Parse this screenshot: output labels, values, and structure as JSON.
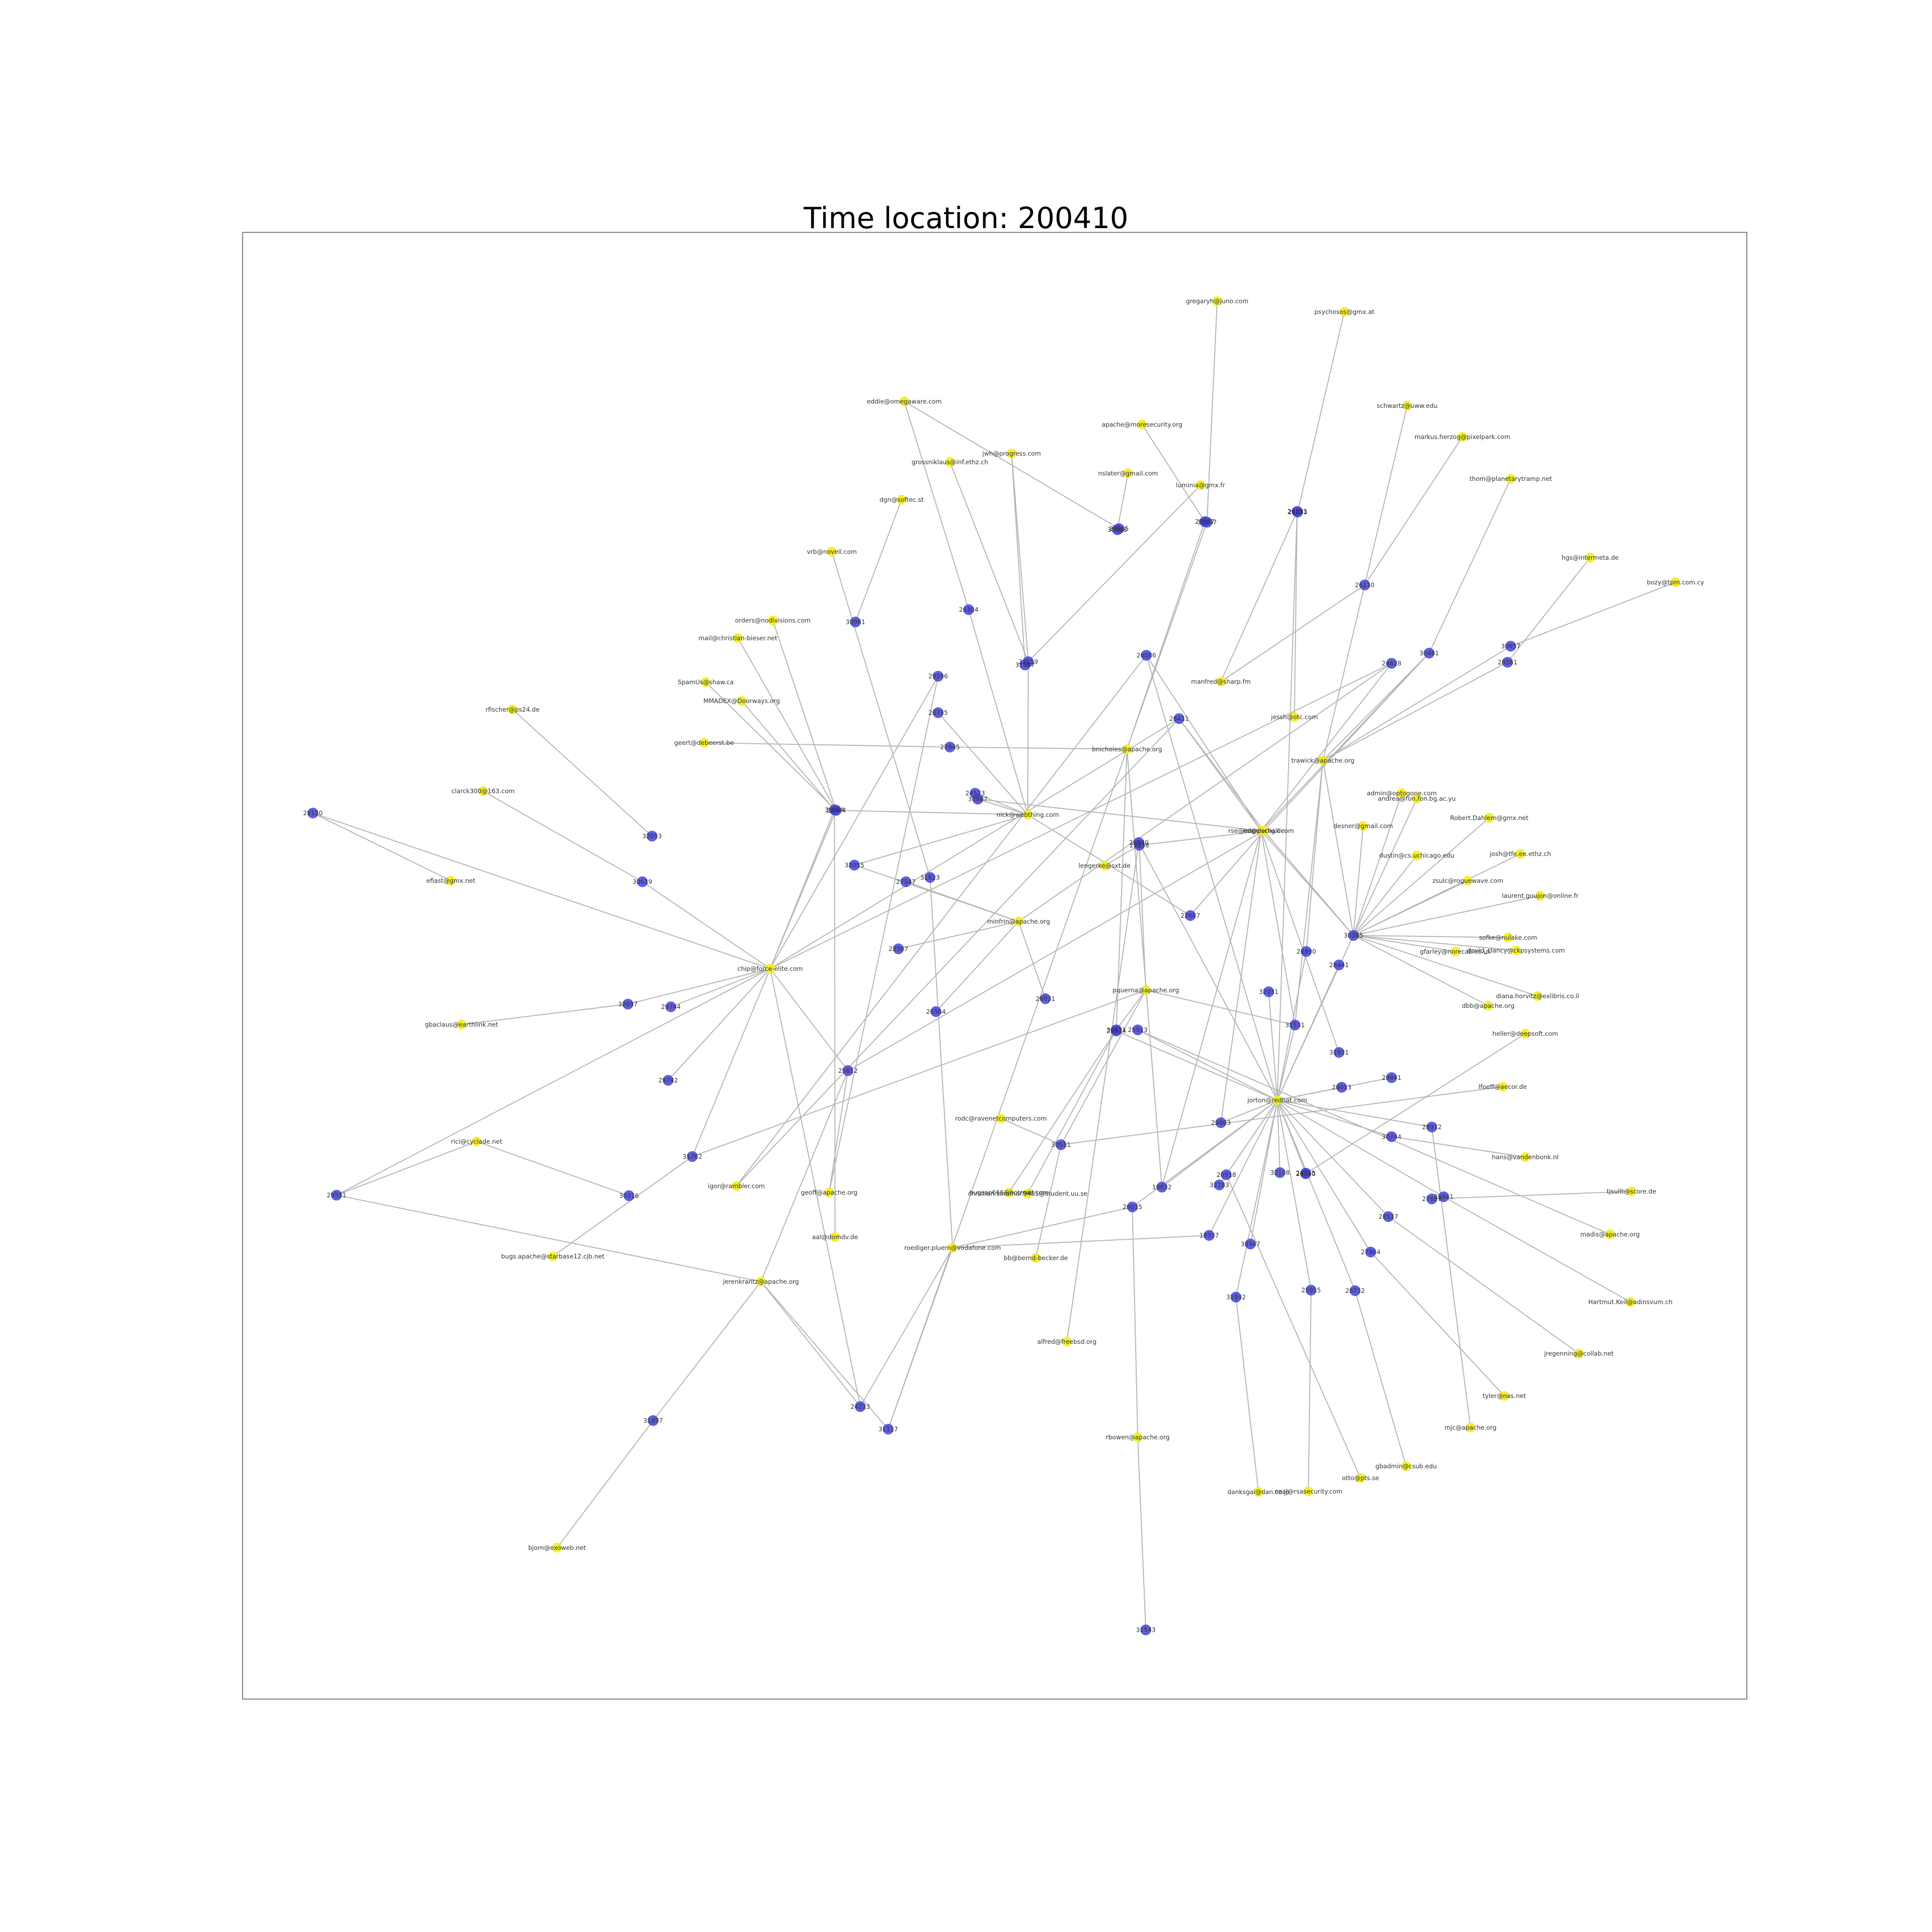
{
  "title": "Time location: 200410",
  "colors": {
    "person_node": "#f2ee1f",
    "issue_node": "#4343dd",
    "edge": "#b4b4b4",
    "frame": "#888888"
  },
  "nodes": [
    {
      "id": "h1",
      "label": "jorton@redhat.com",
      "kind": "person"
    },
    {
      "id": "h2",
      "label": "pquerna@apache.org",
      "kind": "person"
    },
    {
      "id": "h3",
      "label": "chip@force-elite.com",
      "kind": "person"
    },
    {
      "id": "h4",
      "label": "nick@webthing.com",
      "kind": "person"
    },
    {
      "id": "h5",
      "label": "minfrin@apache.org",
      "kind": "person"
    },
    {
      "id": "h6",
      "label": "trawick@apache.org",
      "kind": "person"
    },
    {
      "id": "h7",
      "label": "bnicholes@apache.org",
      "kind": "person"
    },
    {
      "id": "h8",
      "label": "rse@engelschall.com",
      "kind": "person"
    },
    {
      "id": "h9",
      "label": "jerenkrantz@apache.org",
      "kind": "person"
    },
    {
      "id": "h10",
      "label": "roediger.pluem@vodafone.com",
      "kind": "person"
    },
    {
      "id": "h11",
      "label": "nd@perlig.de",
      "kind": "person"
    },
    {
      "id": "h12",
      "label": "geoff@apache.org",
      "kind": "person"
    },
    {
      "id": "h13",
      "label": "igor@rambler.com",
      "kind": "person"
    },
    {
      "id": "h14",
      "label": "aal@domdv.de",
      "kind": "person"
    },
    {
      "id": "h15",
      "label": "gregaryh@juno.com",
      "kind": "person"
    },
    {
      "id": "h16",
      "label": "psychosos@gmx.at",
      "kind": "person"
    },
    {
      "id": "h17",
      "label": "eddie@omegaware.com",
      "kind": "person"
    },
    {
      "id": "h18",
      "label": "apache@moresecurity.org",
      "kind": "person"
    },
    {
      "id": "h19",
      "label": "jwh@progress.com",
      "kind": "person"
    },
    {
      "id": "h20",
      "label": "grossniklaus@inf.ethz.ch",
      "kind": "person"
    },
    {
      "id": "h21",
      "label": "nslater@gmail.com",
      "kind": "person"
    },
    {
      "id": "h22",
      "label": "luminia@gmx.fr",
      "kind": "person"
    },
    {
      "id": "h23",
      "label": "dgn@softec.st",
      "kind": "person"
    },
    {
      "id": "h24",
      "label": "vrb@novell.com",
      "kind": "person"
    },
    {
      "id": "h25",
      "label": "orders@nodivisions.com",
      "kind": "person"
    },
    {
      "id": "h26",
      "label": "mail@christian-bieser.net",
      "kind": "person"
    },
    {
      "id": "h27",
      "label": "SpamUs@shaw.ca",
      "kind": "person"
    },
    {
      "id": "h28",
      "label": "MMADEX@Doorways.org",
      "kind": "person"
    },
    {
      "id": "h29",
      "label": "geert@debeerst.be",
      "kind": "person"
    },
    {
      "id": "h30",
      "label": "rfischer@ps24.de",
      "kind": "person"
    },
    {
      "id": "h31",
      "label": "clarck300@163.com",
      "kind": "person"
    },
    {
      "id": "h32",
      "label": "efiast@gmx.net",
      "kind": "person"
    },
    {
      "id": "h33",
      "label": "gbaclaus@earthlink.net",
      "kind": "person"
    },
    {
      "id": "h34",
      "label": "rici@cyclade.net",
      "kind": "person"
    },
    {
      "id": "h35",
      "label": "bugs.apache@starbase12.cjb.net",
      "kind": "person"
    },
    {
      "id": "h36",
      "label": "bjorn@exoweb.net",
      "kind": "person"
    },
    {
      "id": "h37",
      "label": "rodc@ravenetcomputers.com",
      "kind": "person"
    },
    {
      "id": "h38",
      "label": "bugsan666@hotmail.com",
      "kind": "person"
    },
    {
      "id": "h39",
      "label": "christian.sommar.9485@student.uu.se",
      "kind": "person"
    },
    {
      "id": "h40",
      "label": "bb@bernd-becker.de",
      "kind": "person"
    },
    {
      "id": "h41",
      "label": "alfred@freebsd.org",
      "kind": "person"
    },
    {
      "id": "h42",
      "label": "lengerke@sxt.de",
      "kind": "person"
    },
    {
      "id": "h43",
      "label": "rbowen@apache.org",
      "kind": "person"
    },
    {
      "id": "h44",
      "label": "danksgai@dan.co.jp",
      "kind": "person"
    },
    {
      "id": "h45",
      "label": "neal@rsasecurity.com",
      "kind": "person"
    },
    {
      "id": "h46",
      "label": "otto@pts.se",
      "kind": "person"
    },
    {
      "id": "h47",
      "label": "gbadmin@csub.edu",
      "kind": "person"
    },
    {
      "id": "h48",
      "label": "mjc@apache.org",
      "kind": "person"
    },
    {
      "id": "h49",
      "label": "tyler@nas.net",
      "kind": "person"
    },
    {
      "id": "h50",
      "label": "jregenning@collab.net",
      "kind": "person"
    },
    {
      "id": "h51",
      "label": "Hartmut.Keil@adinsvum.ch",
      "kind": "person"
    },
    {
      "id": "h52",
      "label": "madis@apache.org",
      "kind": "person"
    },
    {
      "id": "h53",
      "label": "tjsullt@score.de",
      "kind": "person"
    },
    {
      "id": "h54",
      "label": "hans@vandenbonk.nl",
      "kind": "person"
    },
    {
      "id": "h55",
      "label": "lfoeff@aecor.de",
      "kind": "person"
    },
    {
      "id": "h56",
      "label": "heller@deepsoft.com",
      "kind": "person"
    },
    {
      "id": "h57",
      "label": "diana.horvitz@exlibris.co.il",
      "kind": "person"
    },
    {
      "id": "h58",
      "label": "dbb@apache.org",
      "kind": "person"
    },
    {
      "id": "h59",
      "label": "david_clancy@ckpsystems.com",
      "kind": "person"
    },
    {
      "id": "h60",
      "label": "sofke@nulake.com",
      "kind": "person"
    },
    {
      "id": "h61",
      "label": "gfarley@norecab.co.uk",
      "kind": "person"
    },
    {
      "id": "h62",
      "label": "laurent.goujon@online.fr",
      "kind": "person"
    },
    {
      "id": "h63",
      "label": "zsulc@roguewave.com",
      "kind": "person"
    },
    {
      "id": "h64",
      "label": "dustin@cs.uchicago.edu",
      "kind": "person"
    },
    {
      "id": "h65",
      "label": "josh@tfe.ee.ethz.ch",
      "kind": "person"
    },
    {
      "id": "h66",
      "label": "Robert.Dahlem@gmx.net",
      "kind": "person"
    },
    {
      "id": "h67",
      "label": "andrea@fon.fon.bg.ac.yu",
      "kind": "person"
    },
    {
      "id": "h68",
      "label": "admin@optogone.com",
      "kind": "person"
    },
    {
      "id": "h69",
      "label": "desner@gmail.com",
      "kind": "person"
    },
    {
      "id": "h70",
      "label": "jessh@otc.com",
      "kind": "person"
    },
    {
      "id": "h71",
      "label": "manfred@sharp.fm",
      "kind": "person"
    },
    {
      "id": "h72",
      "label": "schwartz@uww.edu",
      "kind": "person"
    },
    {
      "id": "h73",
      "label": "markus.herzog@pixelpark.com",
      "kind": "person"
    },
    {
      "id": "h74",
      "label": "thom@planetarytramp.net",
      "kind": "person"
    },
    {
      "id": "h75",
      "label": "hgs@intermeta.de",
      "kind": "person"
    },
    {
      "id": "h76",
      "label": "bozy@tpm.com.cy",
      "kind": "person"
    },
    {
      "id": "i1",
      "label": "28150",
      "kind": "issue"
    },
    {
      "id": "i2",
      "label": "32053",
      "kind": "issue"
    },
    {
      "id": "i3",
      "label": "26151",
      "kind": "issue"
    },
    {
      "id": "i4",
      "label": "29965",
      "kind": "issue"
    },
    {
      "id": "i5",
      "label": "26304",
      "kind": "issue"
    },
    {
      "id": "i6",
      "label": "28547",
      "kind": "issue"
    },
    {
      "id": "i7",
      "label": "30619",
      "kind": "issue"
    },
    {
      "id": "i8",
      "label": "29840",
      "kind": "issue"
    },
    {
      "id": "i9",
      "label": "26110",
      "kind": "issue"
    },
    {
      "id": "i10",
      "label": "31762",
      "kind": "issue"
    },
    {
      "id": "i11",
      "label": "29551",
      "kind": "issue"
    },
    {
      "id": "i12",
      "label": "28912",
      "kind": "issue"
    },
    {
      "id": "i13",
      "label": "24628",
      "kind": "issue"
    },
    {
      "id": "i14",
      "label": "26918",
      "kind": "issue"
    },
    {
      "id": "i15",
      "label": "18337",
      "kind": "issue"
    },
    {
      "id": "i16",
      "label": "29596",
      "kind": "issue"
    },
    {
      "id": "i17",
      "label": "27845",
      "kind": "issue"
    },
    {
      "id": "i18",
      "label": "32159",
      "kind": "issue"
    },
    {
      "id": "i19",
      "label": "27547",
      "kind": "issue"
    },
    {
      "id": "i20",
      "label": "26086",
      "kind": "issue"
    },
    {
      "id": "i21",
      "label": "32037",
      "kind": "issue"
    },
    {
      "id": "i22",
      "label": "25812",
      "kind": "issue"
    },
    {
      "id": "i23",
      "label": "28735",
      "kind": "issue"
    },
    {
      "id": "i24",
      "label": "31664",
      "kind": "issue"
    },
    {
      "id": "i25",
      "label": "32015",
      "kind": "issue"
    },
    {
      "id": "i26",
      "label": "28411",
      "kind": "issue"
    },
    {
      "id": "i27",
      "label": "30481",
      "kind": "issue"
    },
    {
      "id": "i28",
      "label": "23507",
      "kind": "issue"
    },
    {
      "id": "i29",
      "label": "29744",
      "kind": "issue"
    },
    {
      "id": "i30",
      "label": "30431",
      "kind": "issue"
    },
    {
      "id": "i31",
      "label": "23484",
      "kind": "issue"
    },
    {
      "id": "i32",
      "label": "25913",
      "kind": "issue"
    },
    {
      "id": "i33",
      "label": "30887",
      "kind": "issue"
    },
    {
      "id": "i34",
      "label": "28914",
      "kind": "issue"
    },
    {
      "id": "i35",
      "label": "26031",
      "kind": "issue"
    },
    {
      "id": "i36",
      "label": "30511",
      "kind": "issue"
    },
    {
      "id": "i37",
      "label": "19632",
      "kind": "issue"
    },
    {
      "id": "i38",
      "label": "24213",
      "kind": "issue"
    },
    {
      "id": "i39",
      "label": "22667",
      "kind": "issue"
    },
    {
      "id": "i40",
      "label": "28117",
      "kind": "issue"
    },
    {
      "id": "i41",
      "label": "30961",
      "kind": "issue"
    },
    {
      "id": "i42",
      "label": "31687",
      "kind": "issue"
    },
    {
      "id": "i43",
      "label": "28561",
      "kind": "issue"
    },
    {
      "id": "i44",
      "label": "31507",
      "kind": "issue"
    },
    {
      "id": "i45",
      "label": "30657",
      "kind": "issue"
    },
    {
      "id": "i46",
      "label": "26564",
      "kind": "issue"
    },
    {
      "id": "i47",
      "label": "29742",
      "kind": "issue"
    },
    {
      "id": "i48",
      "label": "28441",
      "kind": "issue"
    },
    {
      "id": "i49",
      "label": "23238",
      "kind": "issue"
    },
    {
      "id": "i50",
      "label": "31931",
      "kind": "issue"
    },
    {
      "id": "i51",
      "label": "27864",
      "kind": "issue"
    },
    {
      "id": "i52",
      "label": "28890",
      "kind": "issue"
    },
    {
      "id": "i53",
      "label": "30744",
      "kind": "issue"
    },
    {
      "id": "i54",
      "label": "30385",
      "kind": "issue"
    },
    {
      "id": "i55",
      "label": "31531",
      "kind": "issue"
    },
    {
      "id": "i56",
      "label": "28712",
      "kind": "issue"
    },
    {
      "id": "i57",
      "label": "24715",
      "kind": "issue"
    },
    {
      "id": "i58",
      "label": "26013",
      "kind": "issue"
    },
    {
      "id": "i59",
      "label": "27657",
      "kind": "issue"
    },
    {
      "id": "i60",
      "label": "21883",
      "kind": "issue"
    },
    {
      "id": "i61",
      "label": "31942",
      "kind": "issue"
    },
    {
      "id": "i62",
      "label": "31117",
      "kind": "issue"
    },
    {
      "id": "i63",
      "label": "30648",
      "kind": "issue"
    },
    {
      "id": "i64",
      "label": "32031",
      "kind": "issue"
    },
    {
      "id": "i65",
      "label": "29841",
      "kind": "issue"
    },
    {
      "id": "i66",
      "label": "31623",
      "kind": "issue"
    },
    {
      "id": "i67",
      "label": "32183",
      "kind": "issue"
    },
    {
      "id": "i68",
      "label": "31941",
      "kind": "issue"
    },
    {
      "id": "i69",
      "label": "30347",
      "kind": "issue"
    },
    {
      "id": "i70",
      "label": "26040",
      "kind": "issue"
    },
    {
      "id": "i71",
      "label": "29803",
      "kind": "issue"
    },
    {
      "id": "i72",
      "label": "30316",
      "kind": "issue"
    },
    {
      "id": "i73",
      "label": "28015",
      "kind": "issue"
    },
    {
      "id": "i74",
      "label": "32108",
      "kind": "issue"
    },
    {
      "id": "i75",
      "label": "25015",
      "kind": "issue"
    },
    {
      "id": "i76",
      "label": "31897",
      "kind": "issue"
    },
    {
      "id": "i77",
      "label": "24573",
      "kind": "issue"
    },
    {
      "id": "i78",
      "label": "31543",
      "kind": "issue"
    }
  ],
  "edges": [
    [
      "h15",
      "i44"
    ],
    [
      "h16",
      "i60"
    ],
    [
      "h17",
      "i4"
    ],
    [
      "h17",
      "i5"
    ],
    [
      "h18",
      "i6"
    ],
    [
      "h19",
      "i42"
    ],
    [
      "h19",
      "i18"
    ],
    [
      "h20",
      "i18"
    ],
    [
      "h21",
      "i63"
    ],
    [
      "h22",
      "i42"
    ],
    [
      "h23",
      "i41"
    ],
    [
      "h24",
      "i66"
    ],
    [
      "h25",
      "i31"
    ],
    [
      "h26",
      "i31"
    ],
    [
      "h27",
      "i31"
    ],
    [
      "h28",
      "i24"
    ],
    [
      "h29",
      "i17"
    ],
    [
      "h30",
      "i2"
    ],
    [
      "h31",
      "i7"
    ],
    [
      "h32",
      "i1"
    ],
    [
      "h33",
      "i21"
    ],
    [
      "h34",
      "i72"
    ],
    [
      "h34",
      "i11"
    ],
    [
      "h35",
      "i10"
    ],
    [
      "h36",
      "i76"
    ],
    [
      "h37",
      "i36"
    ],
    [
      "h38",
      "i30"
    ],
    [
      "h39",
      "i30"
    ],
    [
      "h40",
      "i36"
    ],
    [
      "h41",
      "i8"
    ],
    [
      "h42",
      "i49"
    ],
    [
      "h43",
      "i78"
    ],
    [
      "h43",
      "i73"
    ],
    [
      "h44",
      "i61"
    ],
    [
      "h45",
      "i75"
    ],
    [
      "h46",
      "i14"
    ],
    [
      "h47",
      "i56"
    ],
    [
      "h48",
      "i12"
    ],
    [
      "h49",
      "i51"
    ],
    [
      "h50",
      "i40"
    ],
    [
      "h51",
      "i68"
    ],
    [
      "h52",
      "i32"
    ],
    [
      "h53",
      "i59"
    ],
    [
      "h54",
      "i53"
    ],
    [
      "h55",
      "i36"
    ],
    [
      "h56",
      "i70"
    ],
    [
      "h57",
      "i54"
    ],
    [
      "h58",
      "i54"
    ],
    [
      "h59",
      "i54"
    ],
    [
      "h60",
      "i54"
    ],
    [
      "h61",
      "i54"
    ],
    [
      "h62",
      "i54"
    ],
    [
      "h63",
      "i54"
    ],
    [
      "h64",
      "i54"
    ],
    [
      "h65",
      "i54"
    ],
    [
      "h66",
      "i54"
    ],
    [
      "h67",
      "i54"
    ],
    [
      "h68",
      "i54"
    ],
    [
      "h69",
      "i54"
    ],
    [
      "h70",
      "i3"
    ],
    [
      "h71",
      "i3"
    ],
    [
      "h71",
      "i9"
    ],
    [
      "h72",
      "i9"
    ],
    [
      "h73",
      "i9"
    ],
    [
      "h74",
      "i27"
    ],
    [
      "h75",
      "i43"
    ],
    [
      "h76",
      "i45"
    ],
    [
      "h3",
      "i7"
    ],
    [
      "h3",
      "i1"
    ],
    [
      "h3",
      "i21"
    ],
    [
      "h3",
      "i11"
    ],
    [
      "h3",
      "i13"
    ],
    [
      "h3",
      "i16"
    ],
    [
      "h3",
      "i10"
    ],
    [
      "h3",
      "i31"
    ],
    [
      "h3",
      "i29"
    ],
    [
      "h3",
      "i24"
    ],
    [
      "h3",
      "i22"
    ],
    [
      "h3",
      "i26"
    ],
    [
      "h3",
      "i47"
    ],
    [
      "h3",
      "i38"
    ],
    [
      "h4",
      "i31"
    ],
    [
      "h4",
      "i39"
    ],
    [
      "h4",
      "i5"
    ],
    [
      "h4",
      "i77"
    ],
    [
      "h4",
      "i25"
    ],
    [
      "h4",
      "i23"
    ],
    [
      "h4",
      "i33"
    ],
    [
      "h4",
      "i18"
    ],
    [
      "h5",
      "i25"
    ],
    [
      "h5",
      "i19"
    ],
    [
      "h5",
      "i35"
    ],
    [
      "h5",
      "i46"
    ],
    [
      "h5",
      "i28"
    ],
    [
      "h5",
      "i13"
    ],
    [
      "h7",
      "i34"
    ],
    [
      "h7",
      "i44"
    ],
    [
      "h7",
      "i37"
    ],
    [
      "h7",
      "i17"
    ],
    [
      "h7",
      "i6"
    ],
    [
      "h7",
      "i62"
    ],
    [
      "h6",
      "i9"
    ],
    [
      "h6",
      "i43"
    ],
    [
      "h6",
      "i45"
    ],
    [
      "h6",
      "i54"
    ],
    [
      "h6",
      "i52"
    ],
    [
      "h6",
      "i27"
    ],
    [
      "h6",
      "i55"
    ],
    [
      "h11",
      "i27"
    ],
    [
      "h11",
      "i49"
    ],
    [
      "h11",
      "i26"
    ],
    [
      "h11",
      "i54"
    ],
    [
      "h11",
      "i22"
    ],
    [
      "h8",
      "i50"
    ],
    [
      "h8",
      "i27"
    ],
    [
      "h8",
      "i54"
    ],
    [
      "h8",
      "i20"
    ],
    [
      "h8",
      "i13"
    ],
    [
      "h8",
      "i26"
    ],
    [
      "h8",
      "i55"
    ],
    [
      "h8",
      "i71"
    ],
    [
      "h1",
      "i32"
    ],
    [
      "h1",
      "i34"
    ],
    [
      "h1",
      "i37"
    ],
    [
      "h1",
      "i52"
    ],
    [
      "h1",
      "i54"
    ],
    [
      "h1",
      "i55"
    ],
    [
      "h1",
      "i3"
    ],
    [
      "h1",
      "i48"
    ],
    [
      "h1",
      "i65"
    ],
    [
      "h1",
      "i69"
    ],
    [
      "h1",
      "i74"
    ],
    [
      "h1",
      "i67"
    ],
    [
      "h1",
      "i53"
    ],
    [
      "h1",
      "i64"
    ],
    [
      "h1",
      "i58"
    ],
    [
      "h1",
      "i51"
    ],
    [
      "h1",
      "i68"
    ],
    [
      "h1",
      "i56"
    ],
    [
      "h1",
      "i12"
    ],
    [
      "h1",
      "i40"
    ],
    [
      "h1",
      "i75"
    ],
    [
      "h1",
      "i61"
    ],
    [
      "h1",
      "i14"
    ],
    [
      "h1",
      "i57"
    ],
    [
      "h1",
      "i15"
    ],
    [
      "h1",
      "i73"
    ],
    [
      "h1",
      "i71"
    ],
    [
      "h1",
      "i8"
    ],
    [
      "h1",
      "i20"
    ],
    [
      "h2",
      "i30"
    ],
    [
      "h2",
      "i10"
    ],
    [
      "h2",
      "i55"
    ],
    [
      "h2",
      "i49"
    ],
    [
      "h2",
      "i36"
    ],
    [
      "h9",
      "i22"
    ],
    [
      "h9",
      "i38"
    ],
    [
      "h9",
      "i62"
    ],
    [
      "h9",
      "i11"
    ],
    [
      "h9",
      "i76"
    ],
    [
      "h10",
      "i73"
    ],
    [
      "h10",
      "i62"
    ],
    [
      "h10",
      "i38"
    ],
    [
      "h10",
      "i66"
    ],
    [
      "h10",
      "i15"
    ],
    [
      "h12",
      "i16"
    ],
    [
      "h12",
      "i22"
    ],
    [
      "h13",
      "i20"
    ],
    [
      "h13",
      "i26"
    ],
    [
      "h14",
      "i24"
    ],
    [
      "i39",
      "h11"
    ],
    [
      "i33",
      "h8"
    ],
    [
      "i37",
      "h8"
    ]
  ]
}
